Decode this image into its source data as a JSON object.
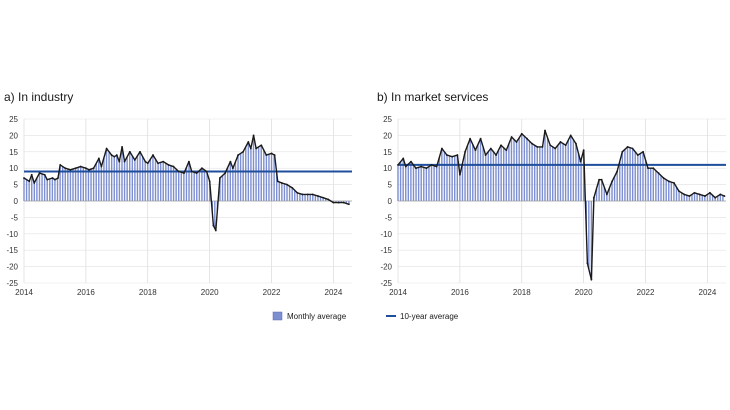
{
  "chart_data": [
    {
      "type": "bar",
      "title": "a)  In industry",
      "xlabel": "",
      "ylabel": "",
      "xlim": [
        2014,
        2024.6
      ],
      "ylim": [
        -25,
        25
      ],
      "y_ticks": [
        -25,
        -20,
        -15,
        -10,
        -5,
        0,
        5,
        10,
        15,
        20,
        25
      ],
      "x_ticks": [
        2014,
        2016,
        2018,
        2020,
        2022,
        2024
      ],
      "x_tick_labels": [
        "2014",
        "2016",
        "2018",
        "2020",
        "2022",
        "2024"
      ],
      "grid": true,
      "series": [
        {
          "name": "Monthly average",
          "style": "bars+line",
          "color": "#7d8fd1",
          "line_color": "#1a1a1a",
          "points": [
            [
              2014.0,
              7
            ],
            [
              2014.17,
              6
            ],
            [
              2014.25,
              8
            ],
            [
              2014.33,
              5.5
            ],
            [
              2014.5,
              8.5
            ],
            [
              2014.67,
              8
            ],
            [
              2014.75,
              6.5
            ],
            [
              2014.92,
              7
            ],
            [
              2015.0,
              6.5
            ],
            [
              2015.1,
              7
            ],
            [
              2015.17,
              11
            ],
            [
              2015.33,
              10
            ],
            [
              2015.5,
              9.5
            ],
            [
              2015.67,
              10
            ],
            [
              2015.83,
              10.5
            ],
            [
              2016.0,
              10
            ],
            [
              2016.1,
              9.5
            ],
            [
              2016.25,
              10
            ],
            [
              2016.42,
              13
            ],
            [
              2016.5,
              10.5
            ],
            [
              2016.67,
              16
            ],
            [
              2016.83,
              14
            ],
            [
              2016.92,
              13.5
            ],
            [
              2017.0,
              14
            ],
            [
              2017.08,
              12
            ],
            [
              2017.17,
              16.5
            ],
            [
              2017.25,
              12
            ],
            [
              2017.42,
              15
            ],
            [
              2017.58,
              12.5
            ],
            [
              2017.75,
              15
            ],
            [
              2017.92,
              12
            ],
            [
              2018.0,
              11.5
            ],
            [
              2018.17,
              14
            ],
            [
              2018.33,
              11.5
            ],
            [
              2018.5,
              12
            ],
            [
              2018.67,
              11
            ],
            [
              2018.83,
              10.5
            ],
            [
              2019.0,
              9
            ],
            [
              2019.17,
              8.5
            ],
            [
              2019.33,
              12
            ],
            [
              2019.42,
              9
            ],
            [
              2019.58,
              8.5
            ],
            [
              2019.75,
              10
            ],
            [
              2019.9,
              9
            ],
            [
              2020.0,
              6
            ],
            [
              2020.12,
              -7.5
            ],
            [
              2020.2,
              -9
            ],
            [
              2020.33,
              7
            ],
            [
              2020.5,
              8.5
            ],
            [
              2020.67,
              12
            ],
            [
              2020.75,
              10
            ],
            [
              2020.92,
              14
            ],
            [
              2021.08,
              15
            ],
            [
              2021.25,
              18
            ],
            [
              2021.33,
              16
            ],
            [
              2021.42,
              20
            ],
            [
              2021.5,
              16
            ],
            [
              2021.67,
              17
            ],
            [
              2021.83,
              14
            ],
            [
              2022.0,
              14.5
            ],
            [
              2022.1,
              14
            ],
            [
              2022.2,
              6
            ],
            [
              2022.33,
              5.5
            ],
            [
              2022.5,
              5
            ],
            [
              2022.67,
              4
            ],
            [
              2022.83,
              2.5
            ],
            [
              2023.0,
              2
            ],
            [
              2023.17,
              2
            ],
            [
              2023.33,
              2
            ],
            [
              2023.5,
              1.5
            ],
            [
              2023.67,
              1
            ],
            [
              2023.83,
              0.5
            ],
            [
              2024.0,
              -0.5
            ],
            [
              2024.17,
              -0.5
            ],
            [
              2024.33,
              -0.5
            ],
            [
              2024.5,
              -1
            ]
          ]
        },
        {
          "name": "10-year average",
          "style": "hline",
          "color": "#1f4e9c",
          "value": 9
        }
      ]
    },
    {
      "type": "bar",
      "title": "b)  In market services",
      "xlabel": "",
      "ylabel": "",
      "xlim": [
        2014,
        2024.6
      ],
      "ylim": [
        -25,
        25
      ],
      "y_ticks": [
        -25,
        -20,
        -15,
        -10,
        -5,
        0,
        5,
        10,
        15,
        20,
        25
      ],
      "x_ticks": [
        2014,
        2016,
        2018,
        2020,
        2022,
        2024
      ],
      "x_tick_labels": [
        "2014",
        "2016",
        "2018",
        "2020",
        "2022",
        "2024"
      ],
      "grid": true,
      "series": [
        {
          "name": "Monthly average",
          "style": "bars+line",
          "color": "#7d8fd1",
          "line_color": "#1a1a1a",
          "points": [
            [
              2014.0,
              11
            ],
            [
              2014.17,
              13
            ],
            [
              2014.25,
              10.5
            ],
            [
              2014.42,
              12
            ],
            [
              2014.58,
              10
            ],
            [
              2014.75,
              10.5
            ],
            [
              2014.92,
              10
            ],
            [
              2015.08,
              11
            ],
            [
              2015.25,
              10.5
            ],
            [
              2015.42,
              16
            ],
            [
              2015.58,
              14
            ],
            [
              2015.75,
              13.5
            ],
            [
              2015.92,
              14
            ],
            [
              2016.0,
              8
            ],
            [
              2016.17,
              15
            ],
            [
              2016.33,
              19
            ],
            [
              2016.5,
              15.5
            ],
            [
              2016.67,
              19
            ],
            [
              2016.83,
              14
            ],
            [
              2017.0,
              16
            ],
            [
              2017.17,
              14
            ],
            [
              2017.33,
              17
            ],
            [
              2017.5,
              15.5
            ],
            [
              2017.67,
              19.5
            ],
            [
              2017.83,
              18
            ],
            [
              2018.0,
              20.5
            ],
            [
              2018.17,
              19
            ],
            [
              2018.33,
              17.5
            ],
            [
              2018.5,
              16.5
            ],
            [
              2018.67,
              16.5
            ],
            [
              2018.75,
              21.5
            ],
            [
              2018.92,
              17
            ],
            [
              2019.08,
              16
            ],
            [
              2019.25,
              18
            ],
            [
              2019.42,
              17
            ],
            [
              2019.58,
              20
            ],
            [
              2019.75,
              17.5
            ],
            [
              2019.9,
              12
            ],
            [
              2020.0,
              15.5
            ],
            [
              2020.12,
              -19
            ],
            [
              2020.25,
              -24
            ],
            [
              2020.33,
              1
            ],
            [
              2020.5,
              6.5
            ],
            [
              2020.58,
              6.5
            ],
            [
              2020.75,
              2
            ],
            [
              2020.92,
              6
            ],
            [
              2021.08,
              9
            ],
            [
              2021.25,
              15
            ],
            [
              2021.42,
              16.5
            ],
            [
              2021.58,
              16
            ],
            [
              2021.75,
              14
            ],
            [
              2021.92,
              15
            ],
            [
              2022.08,
              10
            ],
            [
              2022.25,
              10
            ],
            [
              2022.42,
              8.5
            ],
            [
              2022.58,
              7
            ],
            [
              2022.75,
              6
            ],
            [
              2022.92,
              5.5
            ],
            [
              2023.08,
              3
            ],
            [
              2023.25,
              2
            ],
            [
              2023.42,
              1.5
            ],
            [
              2023.58,
              2.5
            ],
            [
              2023.75,
              2
            ],
            [
              2023.92,
              1.5
            ],
            [
              2024.08,
              2.5
            ],
            [
              2024.25,
              1
            ],
            [
              2024.42,
              2
            ],
            [
              2024.55,
              1.5
            ]
          ]
        },
        {
          "name": "10-year average",
          "style": "hline",
          "color": "#1f4e9c",
          "value": 11
        }
      ]
    }
  ],
  "legend": {
    "items": [
      {
        "label": "Monthly average",
        "color": "#7d8fd1"
      },
      {
        "label": "10-year average",
        "color": "#1f4e9c"
      }
    ]
  }
}
